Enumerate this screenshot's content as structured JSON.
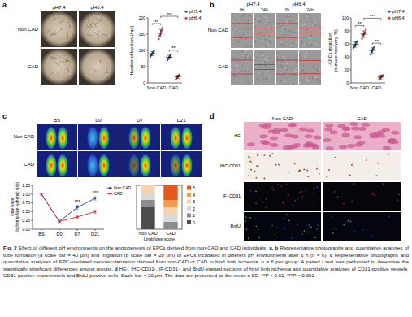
{
  "panels": [
    {
      "label": "a",
      "columns": [
        "pH7.4",
        "pH6.4"
      ],
      "rows": [
        "Non CAD",
        "CAD"
      ]
    },
    {
      "label": "b",
      "columns": [
        "pH7.4",
        "pH6.4"
      ],
      "subcolumns": [
        "0h",
        "24h"
      ],
      "rows": [
        "Non CAD",
        "CAD"
      ]
    },
    {
      "label": "c",
      "columns": [
        "BS",
        "D0",
        "D7",
        "D21"
      ],
      "rows": [
        "Non CAD",
        "CAD"
      ]
    },
    {
      "label": "d",
      "columns": [
        "Non CAD",
        "CAD"
      ],
      "rows": [
        "HE",
        "IHC-CD31",
        "IF- CD31",
        "BrdU"
      ]
    }
  ],
  "chart_data": [
    {
      "type": "scatter",
      "ylabel": "Number of Meshes (/hpf)",
      "categories": [
        "Non CAD",
        "CAD"
      ],
      "series": [
        {
          "name": "pH7.4",
          "color": "#2f4fa0",
          "values": [
            [
              80,
              85,
              88,
              92,
              95,
              98
            ],
            [
              70,
              74,
              78,
              80,
              84,
              88
            ]
          ],
          "mean": [
            90,
            79
          ],
          "error": [
            6,
            6
          ]
        },
        {
          "name": "pH6.4",
          "color": "#d9363e",
          "values": [
            [
              135,
              145,
              150,
              158,
              162,
              170
            ],
            [
              12,
              15,
              18,
              20,
              23,
              26
            ]
          ],
          "mean": [
            153,
            19
          ],
          "error": [
            12,
            5
          ]
        }
      ],
      "ylim": [
        0,
        200
      ],
      "yticks": [
        0,
        50,
        100,
        150,
        200
      ],
      "legend": "top-right",
      "annotations": [
        {
          "text": "**",
          "between": [
            [
              0,
              0
            ],
            [
              0,
              1
            ]
          ]
        },
        {
          "text": "**",
          "between": [
            [
              1,
              0
            ],
            [
              1,
              1
            ]
          ]
        },
        {
          "text": "***",
          "between": [
            [
              0,
              1
            ],
            [
              1,
              1
            ]
          ]
        }
      ]
    },
    {
      "type": "scatter",
      "ylabel": [
        "L-EPCs migration",
        "(surface recovery, %)"
      ],
      "categories": [
        "Non CAD",
        "CAD"
      ],
      "series": [
        {
          "name": "pH7.4",
          "color": "#2f4fa0",
          "values": [
            [
              54,
              56,
              58,
              60,
              62,
              64
            ],
            [
              44,
              47,
              49,
              51,
              53,
              55
            ]
          ],
          "mean": [
            59,
            50
          ],
          "error": [
            4,
            4
          ]
        },
        {
          "name": "pH6.4",
          "color": "#d9363e",
          "values": [
            [
              68,
              72,
              74,
              76,
              78,
              82
            ],
            [
              5,
              7,
              8,
              9,
              11,
              12
            ]
          ],
          "mean": [
            75,
            9
          ],
          "error": [
            5,
            3
          ]
        }
      ],
      "ylim": [
        0,
        100
      ],
      "yticks": [
        0,
        20,
        40,
        60,
        80,
        100
      ],
      "legend": "top-right",
      "annotations": [
        {
          "text": "**",
          "between": [
            [
              0,
              0
            ],
            [
              0,
              1
            ]
          ]
        },
        {
          "text": "**",
          "between": [
            [
              1,
              0
            ],
            [
              1,
              1
            ]
          ]
        },
        {
          "text": "***",
          "between": [
            [
              0,
              1
            ],
            [
              1,
              1
            ]
          ]
        }
      ]
    },
    {
      "type": "line",
      "ylabel": [
        "Flow Ratio",
        "(Ischemic/Non-ischemic side)"
      ],
      "categories": [
        "BS",
        "D0",
        "D7",
        "D21"
      ],
      "series": [
        {
          "name": "Non CAD",
          "color": "#2f4fa0",
          "values": [
            1.0,
            0.22,
            0.62,
            0.88
          ],
          "errors": [
            0.03,
            0.03,
            0.06,
            0.05
          ],
          "marker": "circle"
        },
        {
          "name": "CAD",
          "color": "#d9363e",
          "values": [
            1.0,
            0.22,
            0.35,
            0.5
          ],
          "errors": [
            0.03,
            0.03,
            0.04,
            0.05
          ],
          "marker": "circle"
        }
      ],
      "ylim": [
        0,
        1.25
      ],
      "yticks": [
        {
          "value": 0,
          "label": "0.00"
        },
        {
          "value": 0.25,
          "label": "0.25"
        },
        {
          "value": 0.5,
          "label": "0.50"
        },
        {
          "value": 0.75,
          "label": "0.75"
        },
        {
          "value": 1,
          "label": "1.00"
        },
        {
          "value": 1.25,
          "label": "1.25"
        }
      ],
      "legend": "top-right",
      "annotations": [
        {
          "text": "***",
          "category": 2
        },
        {
          "text": "***",
          "category": 3
        }
      ]
    },
    {
      "type": "bar",
      "stacked": true,
      "xlabel": "Limb loss score",
      "categories": [
        "Non CAD",
        "CAD"
      ],
      "series": [
        {
          "name": "5",
          "color": "#e8561c",
          "values": [
            0,
            2
          ]
        },
        {
          "name": "4",
          "color": "#f39b4b",
          "values": [
            0,
            1
          ]
        },
        {
          "name": "3",
          "color": "#f8d3ad",
          "values": [
            1,
            1
          ]
        },
        {
          "name": "2",
          "color": "#d9d9d9",
          "values": [
            1,
            1
          ]
        },
        {
          "name": "1",
          "color": "#8c8c8c",
          "values": [
            1,
            1
          ]
        },
        {
          "name": "0",
          "color": "#4d4d4d",
          "values": [
            3,
            0
          ]
        }
      ],
      "ylim": [
        0,
        6
      ],
      "tick_labels": "x",
      "legend": "right"
    }
  ],
  "caption": {
    "runs": [
      {
        "text": "Fig. 2",
        "bold": true
      },
      {
        "text": " Effect of different pH environments on the angiogenesis of EPCs derived from non-CAD and CAD individuals. ",
        "bold": false
      },
      {
        "text": "a, b",
        "bold": true
      },
      {
        "text": " Representative photographs and quantitative analyses of tube formation (a scale bar = 40 μm) and migration (b scale bar = 20 μm) of EPCs incubated in different pH environments after 6 h (n = 6). ",
        "bold": false
      },
      {
        "text": "c",
        "bold": true
      },
      {
        "text": " Representative photographs and quantitative analyses of EPC-mediated neovascularization derived from non-CAD or CAD in hind limb ischemia. n = 6 per group. A paired t test was performed to determine the statistically significant differences among groups. ",
        "bold": false
      },
      {
        "text": "d",
        "bold": true
      },
      {
        "text": " HE-, IHC-CD31-, IF-CD31-, and BrdU-stained sections of hind limb ischemia and quantitative analyses of CD31-positive vessels, CD31-positive microvessels and BrdU-positive cells. Scale bar = 20 μm. The data are presented as the mean ± SD. **P < 0.01, ***P < 0.001",
        "bold": false
      }
    ]
  }
}
